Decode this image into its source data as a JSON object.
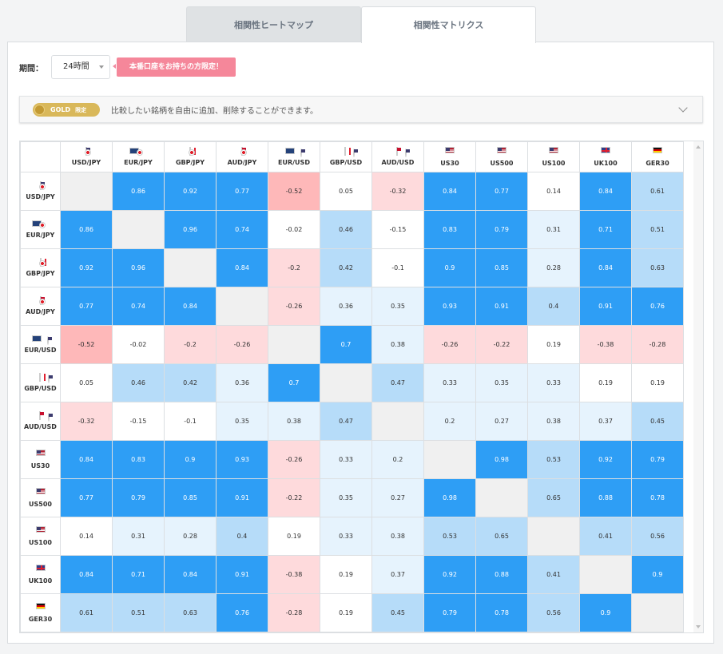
{
  "tabs": [
    {
      "label": "相関性ヒートマップ",
      "active": false
    },
    {
      "label": "相関性マトリクス",
      "active": true
    }
  ],
  "period": {
    "label": "期間：",
    "value": "24時間"
  },
  "notice": "本番口座をお持ちの方限定！",
  "gold": {
    "badge": "GOLD",
    "badge_sub": "限定",
    "text": "比較したい銘柄を自由に追加、削除することができます。"
  },
  "colors": {
    "strong_pos": "#2e9ef5",
    "mid_pos": "#b6dcf9",
    "weak_pos": "#e6f3fd",
    "neutral": "#ffffff",
    "weak_neg": "#fedadc",
    "mid_neg": "#feb8b9",
    "diagonal": "#f0f0f0"
  },
  "symbols": [
    {
      "label": "USD/JPY",
      "flags": [
        "us",
        "jp"
      ]
    },
    {
      "label": "EUR/JPY",
      "flags": [
        "eu",
        "jp"
      ]
    },
    {
      "label": "GBP/JPY",
      "flags": [
        "gb",
        "jp"
      ]
    },
    {
      "label": "AUD/JPY",
      "flags": [
        "au",
        "jp"
      ]
    },
    {
      "label": "EUR/USD",
      "flags": [
        "eu",
        "us"
      ]
    },
    {
      "label": "GBP/USD",
      "flags": [
        "gb",
        "us"
      ]
    },
    {
      "label": "AUD/USD",
      "flags": [
        "au",
        "us"
      ]
    },
    {
      "label": "US30",
      "flags": [
        "us"
      ]
    },
    {
      "label": "US500",
      "flags": [
        "us"
      ]
    },
    {
      "label": "US100",
      "flags": [
        "us"
      ]
    },
    {
      "label": "UK100",
      "flags": [
        "gb"
      ]
    },
    {
      "label": "GER30",
      "flags": [
        "de"
      ]
    }
  ],
  "matrix": [
    [
      null,
      0.86,
      0.92,
      0.77,
      -0.52,
      0.05,
      -0.32,
      0.84,
      0.77,
      0.14,
      0.84,
      0.61
    ],
    [
      0.86,
      null,
      0.96,
      0.74,
      -0.02,
      0.46,
      -0.15,
      0.83,
      0.79,
      0.31,
      0.71,
      0.51
    ],
    [
      0.92,
      0.96,
      null,
      0.84,
      -0.2,
      0.42,
      -0.1,
      0.9,
      0.85,
      0.28,
      0.84,
      0.63
    ],
    [
      0.77,
      0.74,
      0.84,
      null,
      -0.26,
      0.36,
      0.35,
      0.93,
      0.91,
      0.4,
      0.91,
      0.76
    ],
    [
      -0.52,
      -0.02,
      -0.2,
      -0.26,
      null,
      0.7,
      0.38,
      -0.26,
      -0.22,
      0.19,
      -0.38,
      -0.28
    ],
    [
      0.05,
      0.46,
      0.42,
      0.36,
      0.7,
      null,
      0.47,
      0.33,
      0.35,
      0.33,
      0.19,
      0.19
    ],
    [
      -0.32,
      -0.15,
      -0.1,
      0.35,
      0.38,
      0.47,
      null,
      0.2,
      0.27,
      0.38,
      0.37,
      0.45
    ],
    [
      0.84,
      0.83,
      0.9,
      0.93,
      -0.26,
      0.33,
      0.2,
      null,
      0.98,
      0.53,
      0.92,
      0.79
    ],
    [
      0.77,
      0.79,
      0.85,
      0.91,
      -0.22,
      0.35,
      0.27,
      0.98,
      null,
      0.65,
      0.88,
      0.78
    ],
    [
      0.14,
      0.31,
      0.28,
      0.4,
      0.19,
      0.33,
      0.38,
      0.53,
      0.65,
      null,
      0.41,
      0.56
    ],
    [
      0.84,
      0.71,
      0.84,
      0.91,
      -0.38,
      0.19,
      0.37,
      0.92,
      0.88,
      0.41,
      null,
      0.9
    ],
    [
      0.61,
      0.51,
      0.63,
      0.76,
      -0.28,
      0.19,
      0.45,
      0.79,
      0.78,
      0.56,
      0.9,
      null
    ]
  ]
}
